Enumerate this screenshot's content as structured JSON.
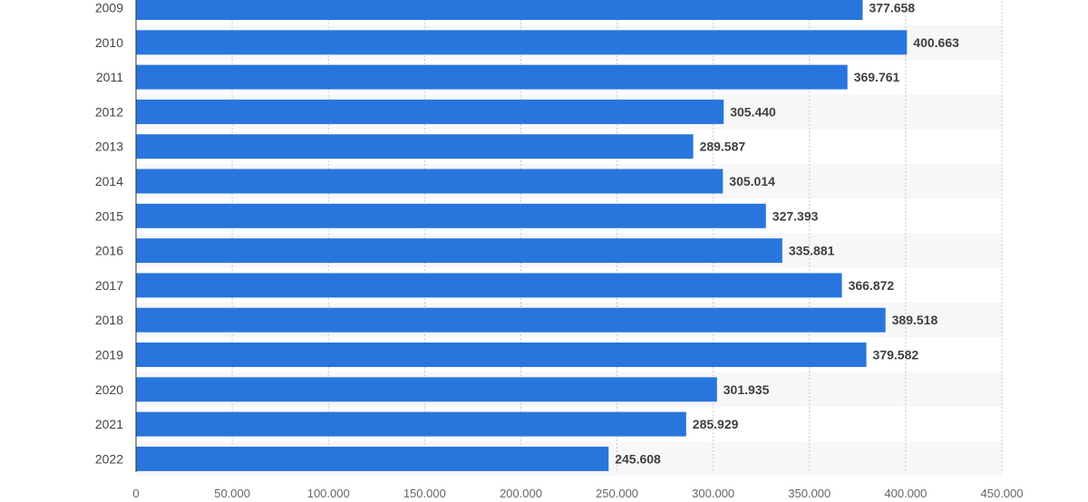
{
  "chart_data": {
    "type": "bar",
    "orientation": "horizontal",
    "title": "",
    "xlabel": "",
    "ylabel": "",
    "categories": [
      "2009",
      "2010",
      "2011",
      "2012",
      "2013",
      "2014",
      "2015",
      "2016",
      "2017",
      "2018",
      "2019",
      "2020",
      "2021",
      "2022"
    ],
    "values": [
      377658,
      400663,
      369761,
      305440,
      289587,
      305014,
      327393,
      335881,
      366872,
      389518,
      379582,
      301935,
      285929,
      245608
    ],
    "value_labels": [
      "377.658",
      "400.663",
      "369.761",
      "305.440",
      "289.587",
      "305.014",
      "327.393",
      "335.881",
      "366.872",
      "389.518",
      "379.582",
      "301.935",
      "285.929",
      "245.608"
    ],
    "xlim": [
      0,
      450000
    ],
    "x_ticks": [
      0,
      50000,
      100000,
      150000,
      200000,
      250000,
      300000,
      350000,
      400000,
      450000
    ],
    "x_tick_labels": [
      "0",
      "50.000",
      "100.000",
      "150.000",
      "200.000",
      "250.000",
      "300.000",
      "350.000",
      "400.000",
      "450.000"
    ],
    "grid": true,
    "bar_color": "#2876dd",
    "stripe_color": "#f7f7f7"
  }
}
